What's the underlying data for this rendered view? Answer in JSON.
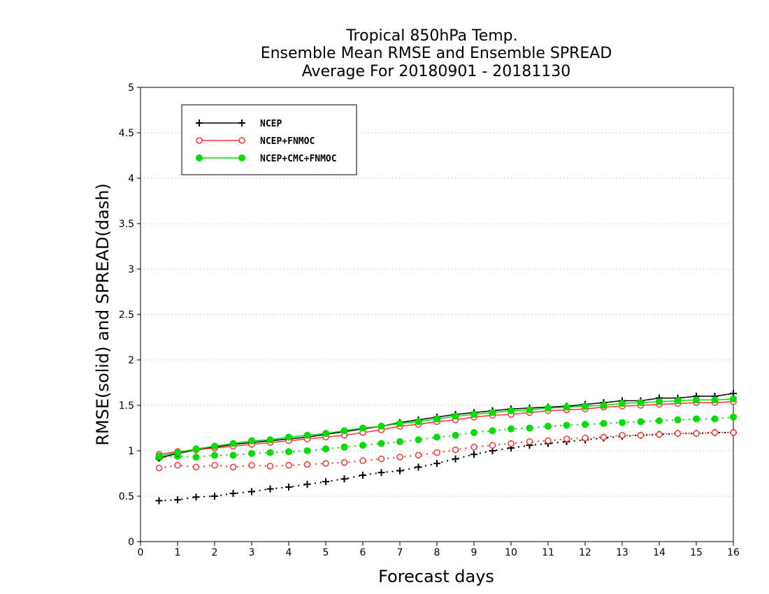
{
  "colors": {
    "NCEP": "#000000",
    "NCEP+FNMOC": "#ff3333",
    "NCEP+CMC+FNMOC": "#00dd00",
    "grid": "#aaaaaa"
  },
  "chart_data": {
    "type": "line",
    "title": [
      "Tropical 850hPa Temp.",
      "Ensemble Mean RMSE and Ensemble SPREAD",
      "Average For 20180901 - 20181130"
    ],
    "xlabel": "Forecast days",
    "ylabel": "RMSE(solid) and SPREAD(dash)",
    "xlim": [
      0,
      16
    ],
    "ylim": [
      0,
      5
    ],
    "xticks": [
      "0",
      "1",
      "2",
      "3",
      "4",
      "5",
      "6",
      "7",
      "8",
      "9",
      "10",
      "11",
      "12",
      "13",
      "14",
      "15",
      "16"
    ],
    "yticks": [
      "0",
      "0.5",
      "1",
      "1.5",
      "2",
      "2.5",
      "3",
      "3.5",
      "4",
      "4.5",
      "5"
    ],
    "grid": "horizontal dotted",
    "legend_position": "top-left",
    "x": [
      0.5,
      1,
      1.5,
      2,
      2.5,
      3,
      3.5,
      4,
      4.5,
      5,
      5.5,
      6,
      6.5,
      7,
      7.5,
      8,
      8.5,
      9,
      9.5,
      10,
      10.5,
      11,
      11.5,
      12,
      12.5,
      13,
      13.5,
      14,
      14.5,
      15,
      15.5,
      16
    ],
    "series": [
      {
        "name": "NCEP",
        "marker": "plus",
        "rmse": [
          0.92,
          0.97,
          1.01,
          1.04,
          1.07,
          1.09,
          1.11,
          1.13,
          1.15,
          1.18,
          1.21,
          1.24,
          1.27,
          1.31,
          1.34,
          1.37,
          1.4,
          1.42,
          1.44,
          1.46,
          1.47,
          1.48,
          1.49,
          1.51,
          1.53,
          1.55,
          1.55,
          1.58,
          1.58,
          1.6,
          1.6,
          1.63
        ],
        "spread": [
          0.45,
          0.46,
          0.49,
          0.5,
          0.53,
          0.55,
          0.58,
          0.6,
          0.63,
          0.66,
          0.69,
          0.73,
          0.76,
          0.78,
          0.82,
          0.86,
          0.91,
          0.96,
          1.0,
          1.03,
          1.06,
          1.08,
          1.1,
          1.12,
          1.14,
          1.16,
          1.17,
          1.18,
          1.19,
          1.19,
          1.2,
          1.2
        ]
      },
      {
        "name": "NCEP+FNMOC",
        "marker": "open-circle",
        "rmse": [
          0.96,
          0.99,
          1.01,
          1.03,
          1.05,
          1.07,
          1.09,
          1.11,
          1.13,
          1.15,
          1.17,
          1.2,
          1.23,
          1.27,
          1.29,
          1.32,
          1.34,
          1.37,
          1.39,
          1.4,
          1.42,
          1.44,
          1.45,
          1.46,
          1.48,
          1.49,
          1.5,
          1.51,
          1.52,
          1.53,
          1.53,
          1.54
        ],
        "spread": [
          0.81,
          0.84,
          0.82,
          0.84,
          0.82,
          0.84,
          0.83,
          0.84,
          0.85,
          0.86,
          0.87,
          0.89,
          0.91,
          0.93,
          0.95,
          0.98,
          1.01,
          1.04,
          1.06,
          1.08,
          1.1,
          1.11,
          1.13,
          1.14,
          1.15,
          1.17,
          1.17,
          1.18,
          1.19,
          1.19,
          1.2,
          1.2
        ]
      },
      {
        "name": "NCEP+CMC+FNMOC",
        "marker": "filled-circle",
        "rmse": [
          0.94,
          0.98,
          1.02,
          1.05,
          1.08,
          1.11,
          1.12,
          1.15,
          1.17,
          1.19,
          1.22,
          1.25,
          1.27,
          1.3,
          1.32,
          1.35,
          1.38,
          1.4,
          1.42,
          1.44,
          1.45,
          1.47,
          1.48,
          1.49,
          1.5,
          1.52,
          1.53,
          1.54,
          1.55,
          1.56,
          1.56,
          1.57
        ],
        "spread": [
          0.92,
          0.94,
          0.93,
          0.95,
          0.95,
          0.97,
          0.98,
          0.99,
          1.0,
          1.02,
          1.04,
          1.06,
          1.08,
          1.1,
          1.12,
          1.15,
          1.17,
          1.2,
          1.22,
          1.24,
          1.25,
          1.27,
          1.28,
          1.29,
          1.3,
          1.31,
          1.32,
          1.33,
          1.34,
          1.35,
          1.35,
          1.37
        ]
      }
    ]
  }
}
